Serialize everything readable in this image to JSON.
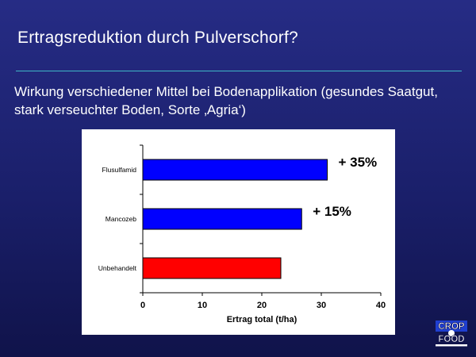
{
  "slide": {
    "title": "Ertragsreduktion durch Pulverschorf?",
    "subtitle": "Wirkung verschiedener Mittel bei Bodenapplikation (gesundes Saatgut, stark verseuchter Boden, Sorte ‚Agria‘)"
  },
  "colors": {
    "background": "#1f247a",
    "rule": "#3fb6c6",
    "treatment_bar": "#0000ff",
    "control_bar": "#ff0000"
  },
  "chart_data": {
    "type": "bar",
    "orientation": "horizontal",
    "categories": [
      "Flusulfamid",
      "Mancozeb",
      "Unbehandelt"
    ],
    "values": [
      31,
      26.7,
      23.2
    ],
    "bar_colors": [
      "#0000ff",
      "#0000ff",
      "#ff0000"
    ],
    "annotations": [
      "+ 35%",
      "+ 15%",
      ""
    ],
    "xlabel": "Ertrag total (t/ha)",
    "ylabel": "",
    "xlim": [
      0,
      40
    ],
    "xticks": [
      0,
      10,
      20,
      30,
      40
    ],
    "grid": false,
    "legend": "none"
  },
  "logo": {
    "line1": "CROP",
    "line2": "FOOD",
    "icon": "crop-for-food-logo"
  }
}
